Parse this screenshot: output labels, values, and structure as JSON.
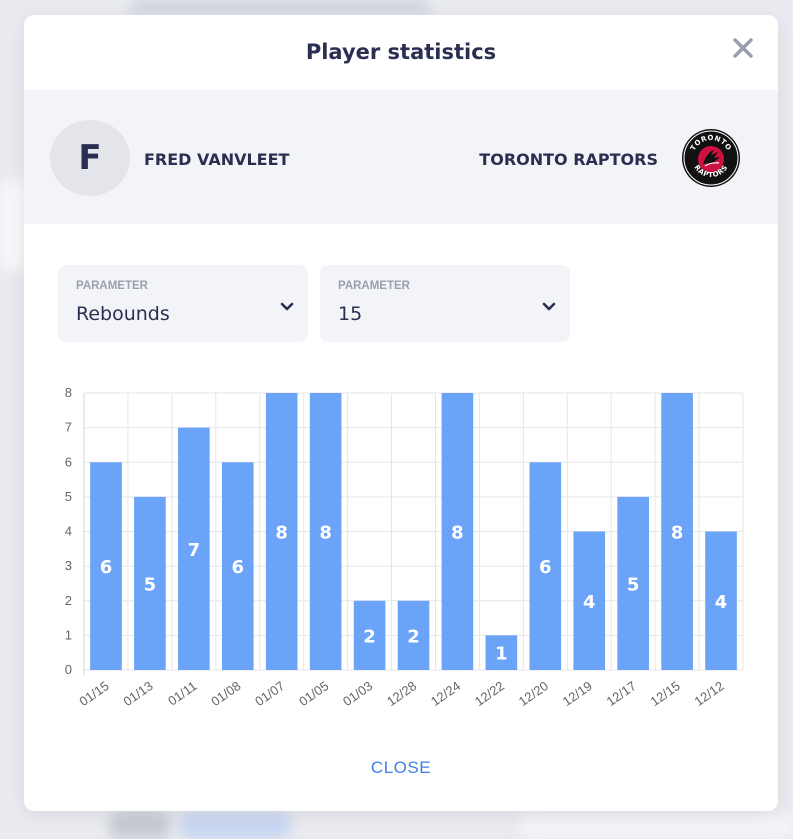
{
  "modal": {
    "title": "Player statistics",
    "close_label": "CLOSE"
  },
  "player": {
    "initial": "F",
    "name": "FRED VANVLEET"
  },
  "team": {
    "name": "TORONTO RAPTORS",
    "logo_text_top": "TORONTO",
    "logo_text_bottom": "RAPTORS",
    "logo_colors": [
      "#111111",
      "#ce1141",
      "#ffffff"
    ]
  },
  "filters": [
    {
      "label": "PARAMETER",
      "value": "Rebounds"
    },
    {
      "label": "PARAMETER",
      "value": "15"
    }
  ],
  "colors": {
    "bar": "#6aa3f7",
    "bar_label": "#ffffff",
    "text_dark": "#2a2f52",
    "link": "#3e7ee8",
    "panel_bg": "#f3f4f7"
  },
  "chart_data": {
    "type": "bar",
    "categories": [
      "01/15",
      "01/13",
      "01/11",
      "01/08",
      "01/07",
      "01/05",
      "01/03",
      "12/28",
      "12/24",
      "12/22",
      "12/20",
      "12/19",
      "12/17",
      "12/15",
      "12/12"
    ],
    "values": [
      6,
      5,
      7,
      6,
      8,
      8,
      2,
      2,
      8,
      1,
      6,
      4,
      5,
      8,
      4
    ],
    "ylim": [
      0,
      8
    ],
    "yticks": [
      "0",
      "1",
      "2",
      "3",
      "4",
      "5",
      "6",
      "7",
      "8"
    ],
    "grid": true,
    "data_labels": true,
    "title": "",
    "xlabel": "",
    "ylabel": ""
  }
}
